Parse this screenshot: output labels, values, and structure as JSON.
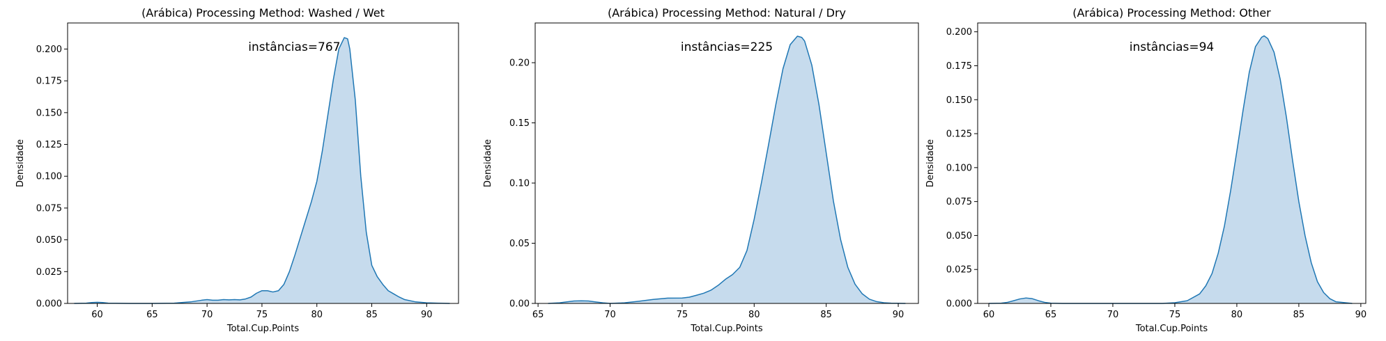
{
  "chart_data": [
    {
      "type": "area",
      "title": "(Arábica) Processing Method: Washed / Wet",
      "xlabel": "Total.Cup.Points",
      "ylabel": "Densidade",
      "annotation": "instâncias=767",
      "xlim": [
        57.3,
        92.9
      ],
      "ylim": [
        0,
        0.2205
      ],
      "xticks": [
        60,
        65,
        70,
        75,
        80,
        85,
        90
      ],
      "yticks": [
        0.0,
        0.025,
        0.05,
        0.075,
        0.1,
        0.125,
        0.15,
        0.175,
        0.2
      ],
      "ytick_format": 3,
      "grid": false,
      "color": "#1f77b4",
      "fill_color": "#c6dbed",
      "x": [
        57.9,
        59.0,
        59.5,
        60.0,
        60.5,
        61.0,
        63,
        65,
        67,
        68.5,
        69.5,
        70.0,
        70.5,
        71.0,
        71.5,
        72.0,
        72.5,
        73.0,
        73.5,
        74.0,
        74.5,
        75.0,
        75.5,
        76.0,
        76.5,
        77.0,
        77.5,
        78.0,
        78.5,
        79.0,
        79.5,
        80.0,
        80.5,
        81.0,
        81.5,
        82.0,
        82.5,
        82.8,
        83.0,
        83.5,
        84.0,
        84.5,
        85.0,
        85.5,
        86.0,
        86.5,
        87.0,
        87.5,
        88.0,
        89.0,
        90.0,
        91.0,
        92.1
      ],
      "y": [
        0.0,
        0.0002,
        0.0007,
        0.0009,
        0.0007,
        0.0002,
        0.0,
        0.0,
        0.0002,
        0.0012,
        0.0025,
        0.003,
        0.0025,
        0.0025,
        0.003,
        0.0028,
        0.003,
        0.0028,
        0.0035,
        0.005,
        0.008,
        0.01,
        0.01,
        0.009,
        0.01,
        0.015,
        0.025,
        0.038,
        0.052,
        0.066,
        0.08,
        0.096,
        0.12,
        0.148,
        0.176,
        0.2,
        0.209,
        0.208,
        0.2,
        0.16,
        0.1,
        0.056,
        0.03,
        0.021,
        0.015,
        0.01,
        0.0075,
        0.005,
        0.003,
        0.0012,
        0.0005,
        0.0002,
        0.0
      ]
    },
    {
      "type": "area",
      "title": "(Arábica) Processing Method: Natural / Dry",
      "xlabel": "Total.Cup.Points",
      "ylabel": "Densidade",
      "annotation": "instâncias=225",
      "xlim": [
        64.8,
        91.4
      ],
      "ylim": [
        0,
        0.233
      ],
      "xticks": [
        65,
        70,
        75,
        80,
        85,
        90
      ],
      "yticks": [
        0.0,
        0.05,
        0.1,
        0.15,
        0.2
      ],
      "ytick_format": 2,
      "grid": false,
      "color": "#1f77b4",
      "fill_color": "#c6dbed",
      "x": [
        65.7,
        66.5,
        67.0,
        67.5,
        68.0,
        68.5,
        69.0,
        69.5,
        70.0,
        71.0,
        72.0,
        73.0,
        74.0,
        75.0,
        75.5,
        76.0,
        76.5,
        77.0,
        77.5,
        78.0,
        78.5,
        79.0,
        79.5,
        80.0,
        80.5,
        81.0,
        81.5,
        82.0,
        82.5,
        83.0,
        83.3,
        83.5,
        84.0,
        84.5,
        85.0,
        85.5,
        86.0,
        86.5,
        87.0,
        87.5,
        88.0,
        88.5,
        89.0,
        89.5,
        90.5
      ],
      "y": [
        0.0,
        0.0005,
        0.0013,
        0.002,
        0.0022,
        0.002,
        0.0012,
        0.0005,
        0.0,
        0.0005,
        0.0018,
        0.0033,
        0.0044,
        0.0045,
        0.0052,
        0.0068,
        0.0085,
        0.011,
        0.015,
        0.02,
        0.024,
        0.03,
        0.044,
        0.07,
        0.1,
        0.132,
        0.165,
        0.195,
        0.215,
        0.222,
        0.221,
        0.218,
        0.198,
        0.165,
        0.125,
        0.085,
        0.053,
        0.03,
        0.016,
        0.008,
        0.0035,
        0.0015,
        0.0006,
        0.0002,
        0.0
      ]
    },
    {
      "type": "area",
      "title": "(Arábica) Processing Method: Other",
      "xlabel": "Total.Cup.Points",
      "ylabel": "Densidade",
      "annotation": "instâncias=94",
      "xlim": [
        59.1,
        90.4
      ],
      "ylim": [
        0,
        0.2065
      ],
      "xticks": [
        60,
        65,
        70,
        75,
        80,
        85,
        90
      ],
      "yticks": [
        0.0,
        0.025,
        0.05,
        0.075,
        0.1,
        0.125,
        0.15,
        0.175,
        0.2
      ],
      "ytick_format": 3,
      "grid": false,
      "color": "#1f77b4",
      "fill_color": "#c6dbed",
      "x": [
        60.0,
        61.0,
        61.5,
        62.0,
        62.5,
        63.0,
        63.5,
        64.0,
        64.5,
        65.0,
        66.0,
        70.0,
        74.0,
        75.0,
        76.0,
        77.0,
        77.5,
        78.0,
        78.5,
        79.0,
        79.5,
        80.0,
        80.5,
        81.0,
        81.5,
        82.0,
        82.2,
        82.5,
        83.0,
        83.5,
        84.0,
        84.5,
        85.0,
        85.5,
        86.0,
        86.5,
        87.0,
        87.5,
        88.0,
        89.3
      ],
      "y": [
        0.0,
        0.0002,
        0.0008,
        0.002,
        0.0033,
        0.004,
        0.0035,
        0.002,
        0.0008,
        0.0002,
        0.0,
        0.0,
        0.0,
        0.0005,
        0.002,
        0.007,
        0.013,
        0.022,
        0.037,
        0.057,
        0.083,
        0.112,
        0.142,
        0.17,
        0.189,
        0.196,
        0.197,
        0.195,
        0.185,
        0.165,
        0.137,
        0.105,
        0.075,
        0.05,
        0.03,
        0.016,
        0.008,
        0.0035,
        0.0012,
        0.0
      ]
    }
  ]
}
